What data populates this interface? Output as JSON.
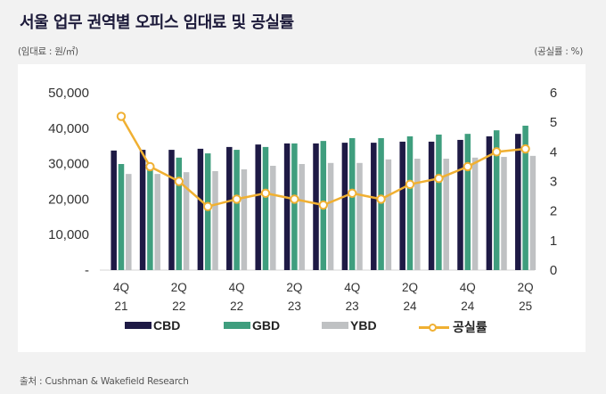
{
  "title": "서울 업무 권역별 오피스 임대료 및 공실률",
  "unit_left": "(임대료 : 원/㎡)",
  "unit_right": "(공실률 : %)",
  "source": "출처 : Cushman & Wakefield Research",
  "colors": {
    "CBD": "#1e1a45",
    "GBD": "#3f9e7e",
    "YBD": "#bfc1c3",
    "vacancy": "#f0b032"
  },
  "chart_data": {
    "type": "bar",
    "title": "서울 업무 권역별 오피스 임대료 및 공실률",
    "xlabel": "",
    "ylabel": "임대료 : 원/㎡",
    "y2label": "공실률 : %",
    "categories": [
      "4Q21",
      "1Q22",
      "2Q22",
      "3Q22",
      "4Q22",
      "1Q23",
      "2Q23",
      "3Q23",
      "4Q23",
      "1Q24",
      "2Q24",
      "3Q24",
      "4Q24",
      "1Q25",
      "2Q25"
    ],
    "x_tick_labels": [
      {
        "index": 0,
        "line1": "4Q",
        "line2": "21"
      },
      {
        "index": 2,
        "line1": "2Q",
        "line2": "22"
      },
      {
        "index": 4,
        "line1": "4Q",
        "line2": "22"
      },
      {
        "index": 6,
        "line1": "2Q",
        "line2": "23"
      },
      {
        "index": 8,
        "line1": "4Q",
        "line2": "23"
      },
      {
        "index": 10,
        "line1": "2Q",
        "line2": "24"
      },
      {
        "index": 12,
        "line1": "4Q",
        "line2": "24"
      },
      {
        "index": 14,
        "line1": "2Q",
        "line2": "25"
      }
    ],
    "ylim": [
      0,
      50000
    ],
    "y_ticks": [
      "-",
      "10,000",
      "20,000",
      "30,000",
      "40,000",
      "50,000"
    ],
    "y2lim": [
      0,
      6
    ],
    "y2_ticks": [
      "0",
      "1",
      "2",
      "3",
      "4",
      "5",
      "6"
    ],
    "series": [
      {
        "name": "CBD",
        "type": "bar",
        "axis": "left",
        "values": [
          33700,
          33900,
          33900,
          34200,
          34700,
          35400,
          35700,
          35700,
          35900,
          35900,
          36200,
          36200,
          36700,
          37700,
          38400
        ]
      },
      {
        "name": "GBD",
        "type": "bar",
        "axis": "left",
        "values": [
          29900,
          28400,
          31700,
          32900,
          33900,
          34700,
          35700,
          36400,
          37200,
          37200,
          37700,
          38200,
          38400,
          39400,
          40700
        ]
      },
      {
        "name": "YBD",
        "type": "bar",
        "axis": "left",
        "values": [
          27100,
          27100,
          27600,
          27900,
          28400,
          29400,
          29900,
          30200,
          30200,
          31200,
          31400,
          31400,
          31700,
          31900,
          32200
        ]
      },
      {
        "name": "공실률",
        "type": "line",
        "axis": "right",
        "values": [
          5.2,
          3.5,
          3.0,
          2.15,
          2.4,
          2.6,
          2.4,
          2.2,
          2.6,
          2.4,
          2.9,
          3.1,
          3.5,
          4.0,
          4.1
        ]
      }
    ],
    "legend": [
      "CBD",
      "GBD",
      "YBD",
      "공실률"
    ],
    "legend_position": "bottom",
    "grid": false
  }
}
